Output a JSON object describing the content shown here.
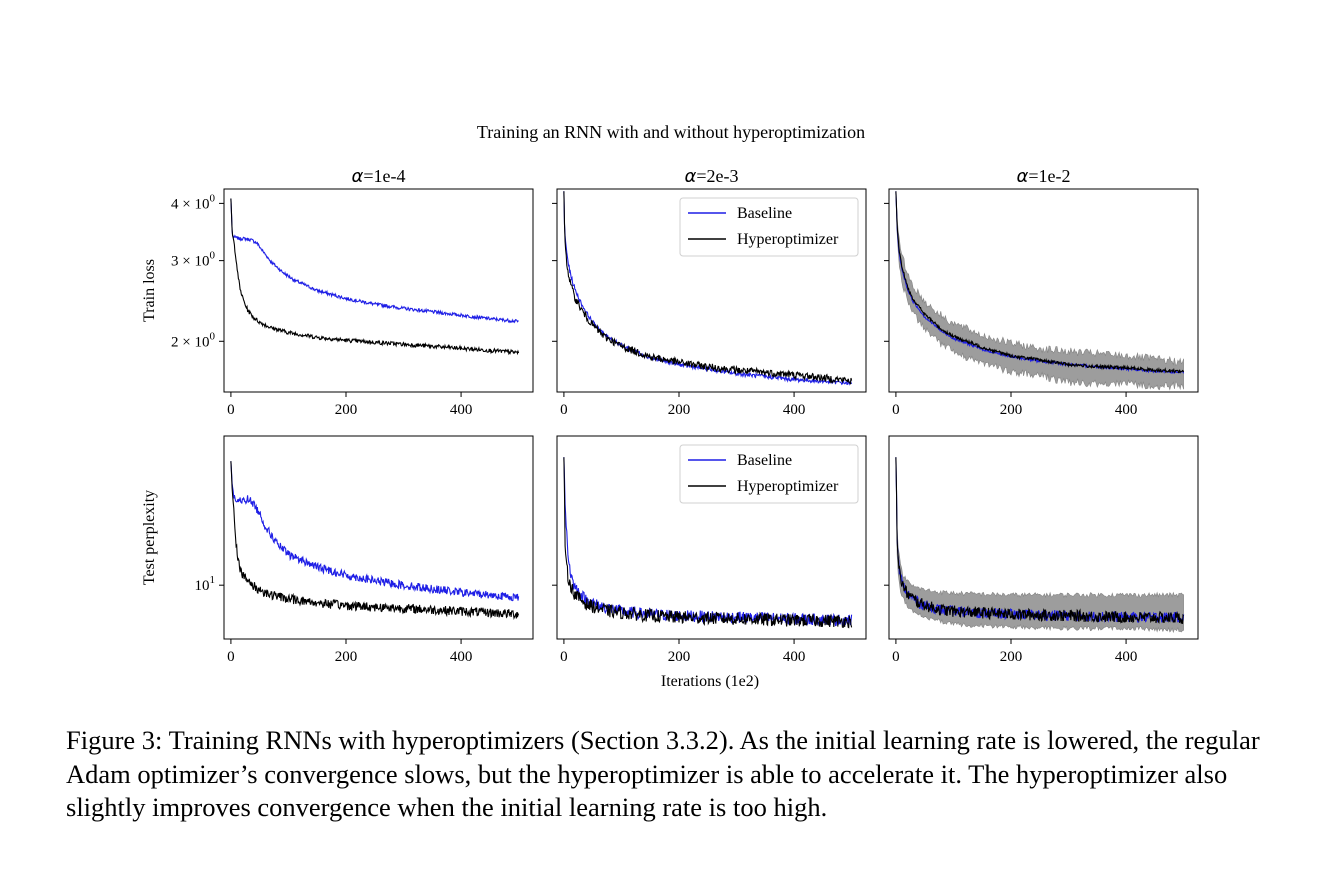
{
  "figure": {
    "suptitle": "Training an RNN with and without hyperoptimization",
    "shared_xlabel": "Iterations (1e2)"
  },
  "caption": "Figure 3: Training RNNs with hyperoptimizers (Section 3.3.2). As the initial learning rate is lowered, the regular Adam optimizer’s convergence slows, but the hyperoptimizer is able to accelerate it. The hyperoptimizer also slightly improves convergence when the initial learning rate is too high.",
  "colors": {
    "baseline": "#1f1fe6",
    "hyperoptimizer": "#000000",
    "band": "#8c8c8c"
  },
  "chart_data": [
    {
      "id": "p00",
      "type": "line",
      "title_symbol": "α",
      "title_value": "=1e-4",
      "ylabel": "Train loss",
      "yscale": "log",
      "ylim": [
        1.55,
        4.3
      ],
      "xlim": [
        -12,
        525
      ],
      "xticks": [
        0,
        200,
        400
      ],
      "yticks": [
        {
          "value": 4,
          "label_base": "4 × 10",
          "label_exp": "0"
        },
        {
          "value": 3,
          "label_base": "3 × 10",
          "label_exp": "0"
        },
        {
          "value": 2,
          "label_base": "2 × 10",
          "label_exp": "0"
        }
      ],
      "legend": false,
      "series": [
        {
          "name": "Baseline",
          "color": "#1f1fe6",
          "noise": 0.008,
          "x": [
            0,
            1,
            2,
            3,
            5,
            8,
            15,
            25,
            35,
            45,
            55,
            70,
            90,
            110,
            150,
            200,
            250,
            300,
            350,
            400,
            450,
            500
          ],
          "y": [
            4.1,
            3.8,
            3.5,
            3.4,
            3.38,
            3.37,
            3.35,
            3.35,
            3.33,
            3.28,
            3.15,
            2.98,
            2.83,
            2.72,
            2.58,
            2.48,
            2.41,
            2.36,
            2.32,
            2.28,
            2.24,
            2.21
          ]
        },
        {
          "name": "Hyperoptimizer",
          "color": "#000000",
          "noise": 0.01,
          "x": [
            0,
            1,
            2,
            3,
            5,
            8,
            12,
            16,
            20,
            25,
            30,
            40,
            50,
            70,
            100,
            150,
            200,
            300,
            400,
            500
          ],
          "y": [
            4.1,
            3.8,
            3.5,
            3.4,
            3.3,
            3.1,
            2.8,
            2.6,
            2.5,
            2.4,
            2.33,
            2.25,
            2.2,
            2.14,
            2.09,
            2.04,
            2.01,
            1.97,
            1.93,
            1.89
          ]
        }
      ]
    },
    {
      "id": "p01",
      "type": "line",
      "title_symbol": "α",
      "title_value": "=2e-3",
      "ylabel": "",
      "yscale": "log",
      "ylim": [
        1.55,
        4.3
      ],
      "xlim": [
        -12,
        525
      ],
      "xticks": [
        0,
        200,
        400
      ],
      "yticks": [
        {
          "value": 4
        },
        {
          "value": 3
        },
        {
          "value": 2
        }
      ],
      "legend": true,
      "legend_position": "top-right",
      "series": [
        {
          "name": "Baseline",
          "color": "#1f1fe6",
          "noise": 0.01,
          "x": [
            0,
            1,
            2,
            4,
            6,
            10,
            15,
            20,
            30,
            40,
            50,
            70,
            100,
            150,
            200,
            250,
            300,
            400,
            500
          ],
          "y": [
            4.25,
            3.6,
            3.4,
            3.2,
            3.05,
            2.85,
            2.7,
            2.58,
            2.42,
            2.3,
            2.2,
            2.07,
            1.96,
            1.84,
            1.78,
            1.74,
            1.7,
            1.65,
            1.62
          ]
        },
        {
          "name": "Hyperoptimizer",
          "color": "#000000",
          "noise": 0.018,
          "x": [
            0,
            1,
            2,
            4,
            6,
            10,
            15,
            20,
            30,
            40,
            50,
            70,
            100,
            150,
            200,
            250,
            300,
            400,
            500
          ],
          "y": [
            4.25,
            3.6,
            3.3,
            3.05,
            2.9,
            2.72,
            2.58,
            2.48,
            2.35,
            2.25,
            2.17,
            2.05,
            1.95,
            1.85,
            1.8,
            1.76,
            1.73,
            1.69,
            1.64
          ]
        }
      ]
    },
    {
      "id": "p02",
      "type": "line",
      "title_symbol": "α",
      "title_value": "=1e-2",
      "ylabel": "",
      "yscale": "log",
      "ylim": [
        1.55,
        4.3
      ],
      "xlim": [
        -12,
        525
      ],
      "xticks": [
        0,
        200,
        400
      ],
      "yticks": [
        {
          "value": 4
        },
        {
          "value": 3
        },
        {
          "value": 2
        }
      ],
      "legend": false,
      "band": {
        "color": "#8c8c8c",
        "x": [
          0,
          2,
          5,
          10,
          20,
          30,
          50,
          80,
          100,
          150,
          200,
          250,
          300,
          350,
          400,
          450,
          500
        ],
        "upper": [
          4.25,
          3.75,
          3.35,
          3.08,
          2.82,
          2.64,
          2.44,
          2.27,
          2.19,
          2.06,
          1.98,
          1.93,
          1.9,
          1.88,
          1.86,
          1.83,
          1.8
        ],
        "lower": [
          4.2,
          3.45,
          3.0,
          2.72,
          2.45,
          2.3,
          2.12,
          1.97,
          1.9,
          1.79,
          1.72,
          1.68,
          1.63,
          1.62,
          1.62,
          1.6,
          1.6
        ]
      },
      "series": [
        {
          "name": "Baseline",
          "color": "#1f1fe6",
          "noise": 0.006,
          "x": [
            0,
            2,
            5,
            10,
            20,
            30,
            50,
            80,
            100,
            150,
            200,
            250,
            300,
            350,
            400,
            450,
            500
          ],
          "y": [
            4.25,
            3.55,
            3.15,
            2.88,
            2.6,
            2.44,
            2.26,
            2.1,
            2.03,
            1.92,
            1.85,
            1.81,
            1.78,
            1.76,
            1.74,
            1.72,
            1.71
          ]
        },
        {
          "name": "Hyperoptimizer",
          "color": "#000000",
          "noise": 0.008,
          "x": [
            0,
            2,
            5,
            10,
            20,
            30,
            50,
            80,
            100,
            150,
            200,
            250,
            300,
            350,
            400,
            450,
            500
          ],
          "y": [
            4.25,
            3.6,
            3.2,
            2.92,
            2.63,
            2.47,
            2.29,
            2.12,
            2.05,
            1.94,
            1.86,
            1.82,
            1.78,
            1.76,
            1.75,
            1.73,
            1.72
          ]
        }
      ]
    },
    {
      "id": "p10",
      "type": "line",
      "title_symbol": "",
      "title_value": "",
      "ylabel": "Test perplexity",
      "yscale": "log",
      "ylim": [
        6.3,
        36
      ],
      "xlim": [
        -12,
        525
      ],
      "xticks": [
        0,
        200,
        400
      ],
      "yticks": [
        {
          "value": 10,
          "label_base": "10",
          "label_exp": "1"
        }
      ],
      "legend": false,
      "series": [
        {
          "name": "Baseline",
          "color": "#1f1fe6",
          "noise": 0.035,
          "x": [
            0,
            2,
            5,
            10,
            20,
            30,
            40,
            50,
            60,
            80,
            100,
            150,
            200,
            250,
            300,
            350,
            400,
            450,
            500
          ],
          "y": [
            29,
            24,
            21.5,
            20.5,
            20.6,
            21,
            20,
            18.5,
            16.5,
            14.3,
            13,
            11.7,
            10.9,
            10.4,
            10.0,
            9.7,
            9.4,
            9.2,
            9.0
          ]
        },
        {
          "name": "Hyperoptimizer",
          "color": "#000000",
          "noise": 0.04,
          "x": [
            0,
            2,
            5,
            8,
            12,
            16,
            20,
            25,
            30,
            40,
            50,
            70,
            100,
            150,
            200,
            300,
            400,
            500
          ],
          "y": [
            29,
            23,
            19,
            15,
            12.8,
            11.6,
            11.0,
            10.6,
            10.3,
            9.9,
            9.6,
            9.2,
            8.9,
            8.6,
            8.4,
            8.2,
            8.0,
            7.8
          ]
        }
      ]
    },
    {
      "id": "p11",
      "type": "line",
      "title_symbol": "",
      "title_value": "",
      "ylabel": "",
      "yscale": "log",
      "ylim": [
        6.3,
        36
      ],
      "xlim": [
        -12,
        525
      ],
      "xticks": [
        0,
        200,
        400
      ],
      "yticks": [
        {
          "value": 10
        }
      ],
      "legend": true,
      "legend_position": "top-right",
      "series": [
        {
          "name": "Baseline",
          "color": "#1f1fe6",
          "noise": 0.05,
          "x": [
            0,
            2,
            4,
            6,
            8,
            12,
            16,
            20,
            30,
            40,
            60,
            80,
            100,
            150,
            200,
            300,
            400,
            500
          ],
          "y": [
            30,
            20,
            17,
            14,
            12.5,
            11,
            10.2,
            9.8,
            9.2,
            8.8,
            8.4,
            8.2,
            8.0,
            7.8,
            7.7,
            7.6,
            7.5,
            7.4
          ]
        },
        {
          "name": "Hyperoptimizer",
          "color": "#000000",
          "noise": 0.055,
          "x": [
            0,
            2,
            4,
            6,
            8,
            12,
            16,
            20,
            30,
            40,
            60,
            80,
            100,
            150,
            200,
            300,
            400,
            500
          ],
          "y": [
            30,
            14,
            12.2,
            11.2,
            10.6,
            10,
            9.5,
            9.2,
            8.8,
            8.5,
            8.2,
            8.0,
            7.9,
            7.7,
            7.6,
            7.5,
            7.4,
            7.35
          ]
        }
      ]
    },
    {
      "id": "p12",
      "type": "line",
      "title_symbol": "",
      "title_value": "",
      "ylabel": "",
      "yscale": "log",
      "ylim": [
        6.3,
        36
      ],
      "xlim": [
        -12,
        525
      ],
      "xticks": [
        0,
        200,
        400
      ],
      "yticks": [
        {
          "value": 10
        }
      ],
      "legend": false,
      "band": {
        "color": "#8c8c8c",
        "x": [
          0,
          2,
          4,
          8,
          12,
          20,
          30,
          50,
          80,
          120,
          200,
          300,
          400,
          500
        ],
        "upper": [
          30,
          16.5,
          13.8,
          11.8,
          11.0,
          10.3,
          9.9,
          9.6,
          9.4,
          9.3,
          9.2,
          9.2,
          9.2,
          9.2
        ],
        "lower": [
          29,
          13,
          11,
          9.6,
          8.9,
          8.4,
          8.0,
          7.6,
          7.3,
          7.1,
          7.0,
          6.9,
          6.9,
          6.8
        ]
      },
      "series": [
        {
          "name": "Baseline",
          "color": "#1f1fe6",
          "noise": 0.045,
          "x": [
            0,
            2,
            4,
            6,
            8,
            12,
            16,
            20,
            30,
            40,
            60,
            80,
            100,
            150,
            200,
            300,
            400,
            500
          ],
          "y": [
            30,
            15,
            12.6,
            11.5,
            10.8,
            10.1,
            9.6,
            9.3,
            8.9,
            8.6,
            8.3,
            8.1,
            8.0,
            7.9,
            7.8,
            7.7,
            7.6,
            7.6
          ]
        },
        {
          "name": "Hyperoptimizer",
          "color": "#000000",
          "noise": 0.05,
          "x": [
            0,
            2,
            4,
            6,
            8,
            12,
            16,
            20,
            30,
            40,
            60,
            80,
            100,
            150,
            200,
            300,
            400,
            500
          ],
          "y": [
            30,
            14.8,
            12.4,
            11.3,
            10.6,
            10.0,
            9.6,
            9.3,
            8.9,
            8.6,
            8.3,
            8.1,
            8.0,
            7.9,
            7.8,
            7.7,
            7.6,
            7.55
          ]
        }
      ]
    }
  ]
}
